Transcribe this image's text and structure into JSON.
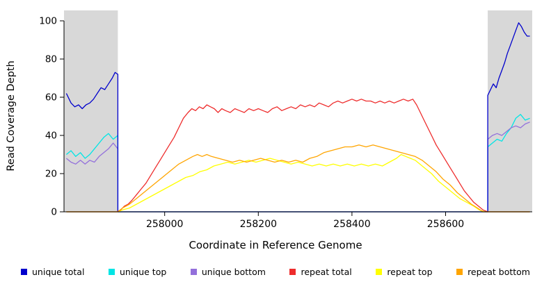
{
  "chart_data": {
    "type": "line",
    "title": "",
    "xlabel": "Coordinate in Reference Genome",
    "ylabel": "Read Coverage Depth",
    "xlim": [
      257785,
      258785
    ],
    "ylim": [
      0,
      100
    ],
    "xticks": [
      258000,
      258200,
      258400,
      258600
    ],
    "yticks": [
      0,
      20,
      40,
      60,
      80,
      100
    ],
    "grid": false,
    "legend_position": "bottom",
    "shaded_regions": [
      {
        "x0": 257785,
        "x1": 257900,
        "color": "#d8d8d8"
      },
      {
        "x0": 258690,
        "x1": 258785,
        "color": "#d8d8d8"
      }
    ],
    "series": [
      {
        "name": "unique top",
        "color": "#00E5E5",
        "points": [
          [
            257790,
            30
          ],
          [
            257800,
            32
          ],
          [
            257810,
            29
          ],
          [
            257820,
            31
          ],
          [
            257830,
            28
          ],
          [
            257840,
            30
          ],
          [
            257850,
            33
          ],
          [
            257860,
            36
          ],
          [
            257870,
            39
          ],
          [
            257880,
            41
          ],
          [
            257890,
            38
          ],
          [
            257900,
            40
          ],
          [
            257900,
            0
          ],
          [
            258690,
            0
          ],
          [
            258690,
            34
          ],
          [
            258700,
            36
          ],
          [
            258710,
            38
          ],
          [
            258720,
            37
          ],
          [
            258730,
            41
          ],
          [
            258740,
            44
          ],
          [
            258750,
            49
          ],
          [
            258760,
            51
          ],
          [
            258770,
            48
          ],
          [
            258780,
            49
          ]
        ]
      },
      {
        "name": "unique bottom",
        "color": "#9370DB",
        "points": [
          [
            257790,
            28
          ],
          [
            257800,
            26
          ],
          [
            257810,
            25
          ],
          [
            257820,
            27
          ],
          [
            257830,
            25
          ],
          [
            257840,
            27
          ],
          [
            257850,
            26
          ],
          [
            257860,
            29
          ],
          [
            257870,
            31
          ],
          [
            257880,
            33
          ],
          [
            257890,
            36
          ],
          [
            257900,
            33
          ],
          [
            257900,
            0
          ],
          [
            258690,
            0
          ],
          [
            258690,
            38
          ],
          [
            258700,
            40
          ],
          [
            258710,
            41
          ],
          [
            258720,
            40
          ],
          [
            258730,
            42
          ],
          [
            258740,
            44
          ],
          [
            258750,
            45
          ],
          [
            258760,
            44
          ],
          [
            258770,
            46
          ],
          [
            258780,
            47
          ]
        ]
      },
      {
        "name": "unique total",
        "color": "#0000CC",
        "points": [
          [
            257790,
            62
          ],
          [
            257800,
            57
          ],
          [
            257808,
            55
          ],
          [
            257816,
            56
          ],
          [
            257824,
            54
          ],
          [
            257832,
            56
          ],
          [
            257840,
            57
          ],
          [
            257848,
            59
          ],
          [
            257856,
            62
          ],
          [
            257864,
            65
          ],
          [
            257872,
            64
          ],
          [
            257880,
            67
          ],
          [
            257888,
            70
          ],
          [
            257894,
            73
          ],
          [
            257900,
            72
          ],
          [
            257900,
            0
          ],
          [
            258690,
            0
          ],
          [
            258690,
            61
          ],
          [
            258696,
            64
          ],
          [
            258702,
            67
          ],
          [
            258708,
            65
          ],
          [
            258714,
            70
          ],
          [
            258720,
            74
          ],
          [
            258726,
            78
          ],
          [
            258732,
            83
          ],
          [
            258738,
            87
          ],
          [
            258744,
            91
          ],
          [
            258750,
            95
          ],
          [
            258756,
            99
          ],
          [
            258762,
            97
          ],
          [
            258768,
            94
          ],
          [
            258774,
            92
          ],
          [
            258780,
            92
          ]
        ]
      },
      {
        "name": "repeat top",
        "color": "#FFFF00",
        "points": [
          [
            257790,
            0
          ],
          [
            257900,
            0
          ],
          [
            257910,
            1
          ],
          [
            257925,
            2
          ],
          [
            257940,
            4
          ],
          [
            257955,
            6
          ],
          [
            257970,
            8
          ],
          [
            257985,
            10
          ],
          [
            258000,
            12
          ],
          [
            258015,
            14
          ],
          [
            258030,
            16
          ],
          [
            258045,
            18
          ],
          [
            258060,
            19
          ],
          [
            258075,
            21
          ],
          [
            258090,
            22
          ],
          [
            258105,
            24
          ],
          [
            258120,
            25
          ],
          [
            258135,
            26
          ],
          [
            258150,
            25
          ],
          [
            258165,
            26
          ],
          [
            258180,
            27
          ],
          [
            258195,
            26
          ],
          [
            258210,
            27
          ],
          [
            258225,
            28
          ],
          [
            258240,
            27
          ],
          [
            258255,
            26
          ],
          [
            258270,
            25
          ],
          [
            258285,
            26
          ],
          [
            258300,
            25
          ],
          [
            258315,
            24
          ],
          [
            258330,
            25
          ],
          [
            258345,
            24
          ],
          [
            258360,
            25
          ],
          [
            258375,
            24
          ],
          [
            258390,
            25
          ],
          [
            258405,
            24
          ],
          [
            258420,
            25
          ],
          [
            258435,
            24
          ],
          [
            258450,
            25
          ],
          [
            258465,
            24
          ],
          [
            258480,
            26
          ],
          [
            258495,
            28
          ],
          [
            258505,
            30
          ],
          [
            258515,
            29
          ],
          [
            258525,
            28
          ],
          [
            258535,
            27
          ],
          [
            258545,
            25
          ],
          [
            258555,
            23
          ],
          [
            258570,
            20
          ],
          [
            258585,
            16
          ],
          [
            258600,
            13
          ],
          [
            258615,
            10
          ],
          [
            258630,
            7
          ],
          [
            258645,
            5
          ],
          [
            258660,
            3
          ],
          [
            258672,
            1
          ],
          [
            258684,
            0
          ],
          [
            258780,
            0
          ]
        ]
      },
      {
        "name": "repeat total",
        "color": "#EE2C2C",
        "points": [
          [
            257790,
            0
          ],
          [
            257898,
            0
          ],
          [
            257906,
            1
          ],
          [
            257914,
            3
          ],
          [
            257922,
            4
          ],
          [
            257930,
            6
          ],
          [
            257940,
            9
          ],
          [
            257950,
            12
          ],
          [
            257960,
            15
          ],
          [
            257970,
            19
          ],
          [
            257980,
            23
          ],
          [
            257990,
            27
          ],
          [
            258000,
            31
          ],
          [
            258010,
            35
          ],
          [
            258020,
            39
          ],
          [
            258030,
            44
          ],
          [
            258040,
            49
          ],
          [
            258050,
            52
          ],
          [
            258058,
            54
          ],
          [
            258066,
            53
          ],
          [
            258074,
            55
          ],
          [
            258082,
            54
          ],
          [
            258090,
            56
          ],
          [
            258098,
            55
          ],
          [
            258106,
            54
          ],
          [
            258114,
            52
          ],
          [
            258122,
            54
          ],
          [
            258130,
            53
          ],
          [
            258140,
            52
          ],
          [
            258150,
            54
          ],
          [
            258160,
            53
          ],
          [
            258170,
            52
          ],
          [
            258180,
            54
          ],
          [
            258190,
            53
          ],
          [
            258200,
            54
          ],
          [
            258210,
            53
          ],
          [
            258220,
            52
          ],
          [
            258230,
            54
          ],
          [
            258240,
            55
          ],
          [
            258250,
            53
          ],
          [
            258260,
            54
          ],
          [
            258270,
            55
          ],
          [
            258280,
            54
          ],
          [
            258290,
            56
          ],
          [
            258300,
            55
          ],
          [
            258310,
            56
          ],
          [
            258320,
            55
          ],
          [
            258330,
            57
          ],
          [
            258340,
            56
          ],
          [
            258350,
            55
          ],
          [
            258360,
            57
          ],
          [
            258370,
            58
          ],
          [
            258380,
            57
          ],
          [
            258390,
            58
          ],
          [
            258400,
            59
          ],
          [
            258410,
            58
          ],
          [
            258420,
            59
          ],
          [
            258430,
            58
          ],
          [
            258440,
            58
          ],
          [
            258450,
            57
          ],
          [
            258460,
            58
          ],
          [
            258470,
            57
          ],
          [
            258480,
            58
          ],
          [
            258490,
            57
          ],
          [
            258500,
            58
          ],
          [
            258510,
            59
          ],
          [
            258520,
            58
          ],
          [
            258530,
            59
          ],
          [
            258538,
            56
          ],
          [
            258546,
            52
          ],
          [
            258554,
            48
          ],
          [
            258562,
            44
          ],
          [
            258570,
            40
          ],
          [
            258580,
            35
          ],
          [
            258590,
            31
          ],
          [
            258600,
            27
          ],
          [
            258610,
            23
          ],
          [
            258620,
            19
          ],
          [
            258630,
            15
          ],
          [
            258640,
            11
          ],
          [
            258650,
            8
          ],
          [
            258660,
            5
          ],
          [
            258670,
            3
          ],
          [
            258680,
            1
          ],
          [
            258690,
            0
          ],
          [
            258780,
            0
          ]
        ]
      },
      {
        "name": "repeat bottom",
        "color": "#FFA500",
        "points": [
          [
            257790,
            0
          ],
          [
            257900,
            0
          ],
          [
            257910,
            2
          ],
          [
            257925,
            4
          ],
          [
            257940,
            7
          ],
          [
            257955,
            10
          ],
          [
            257970,
            13
          ],
          [
            257985,
            16
          ],
          [
            258000,
            19
          ],
          [
            258015,
            22
          ],
          [
            258030,
            25
          ],
          [
            258045,
            27
          ],
          [
            258060,
            29
          ],
          [
            258070,
            30
          ],
          [
            258080,
            29
          ],
          [
            258090,
            30
          ],
          [
            258100,
            29
          ],
          [
            258115,
            28
          ],
          [
            258130,
            27
          ],
          [
            258145,
            26
          ],
          [
            258160,
            27
          ],
          [
            258175,
            26
          ],
          [
            258190,
            27
          ],
          [
            258205,
            28
          ],
          [
            258220,
            27
          ],
          [
            258235,
            26
          ],
          [
            258250,
            27
          ],
          [
            258265,
            26
          ],
          [
            258280,
            27
          ],
          [
            258295,
            26
          ],
          [
            258310,
            28
          ],
          [
            258325,
            29
          ],
          [
            258340,
            31
          ],
          [
            258355,
            32
          ],
          [
            258370,
            33
          ],
          [
            258385,
            34
          ],
          [
            258400,
            34
          ],
          [
            258415,
            35
          ],
          [
            258430,
            34
          ],
          [
            258445,
            35
          ],
          [
            258460,
            34
          ],
          [
            258475,
            33
          ],
          [
            258490,
            32
          ],
          [
            258505,
            31
          ],
          [
            258520,
            30
          ],
          [
            258535,
            29
          ],
          [
            258550,
            27
          ],
          [
            258565,
            24
          ],
          [
            258580,
            21
          ],
          [
            258595,
            17
          ],
          [
            258610,
            14
          ],
          [
            258625,
            10
          ],
          [
            258640,
            7
          ],
          [
            258655,
            4
          ],
          [
            258668,
            2
          ],
          [
            258680,
            0
          ],
          [
            258780,
            0
          ]
        ]
      }
    ]
  },
  "legend": {
    "items": [
      {
        "label": "unique total",
        "color": "#0000CC"
      },
      {
        "label": "unique top",
        "color": "#00E5E5"
      },
      {
        "label": "unique bottom",
        "color": "#9370DB"
      },
      {
        "label": "repeat total",
        "color": "#EE2C2C"
      },
      {
        "label": "repeat top",
        "color": "#FFFF00"
      },
      {
        "label": "repeat bottom",
        "color": "#FFA500"
      }
    ]
  }
}
